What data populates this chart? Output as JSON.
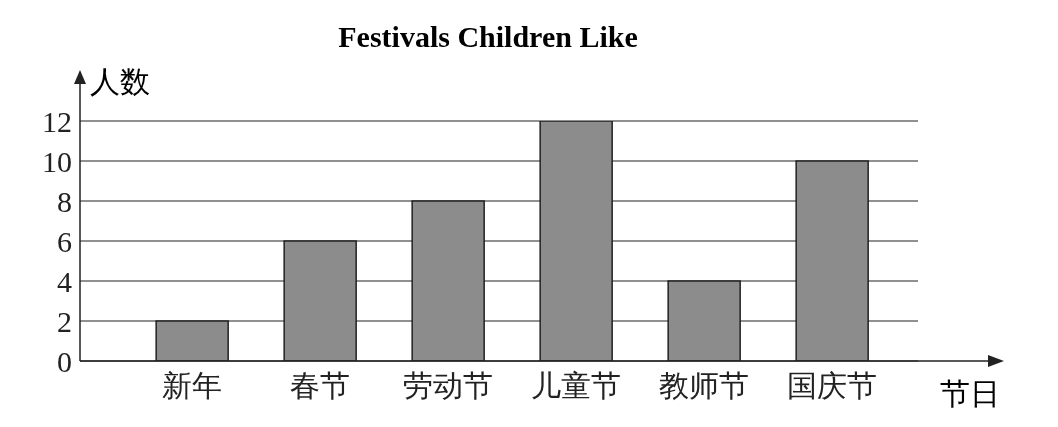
{
  "chart_data": {
    "type": "bar",
    "title": "Festivals Children Like",
    "ylabel": "人数",
    "xlabel": "节日",
    "categories": [
      "新年",
      "春节",
      "劳动节",
      "儿童节",
      "教师节",
      "国庆节"
    ],
    "values": [
      2,
      6,
      8,
      12,
      4,
      10
    ],
    "color": "#8c8c8c",
    "ylim": [
      0,
      12
    ],
    "yticks": [
      0,
      2,
      4,
      6,
      8,
      10,
      12
    ],
    "grid": "y"
  }
}
